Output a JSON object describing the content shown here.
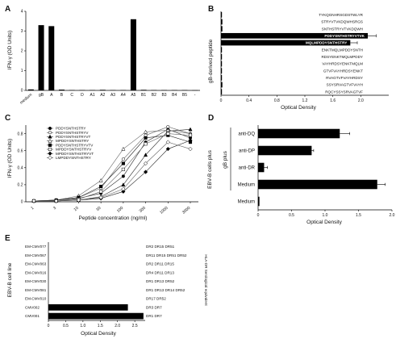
{
  "chart_data": [
    {
      "panel": "A",
      "type": "bar",
      "ylabel": "IFN-γ (OD Units)",
      "ylim": [
        0,
        4
      ],
      "yticks": [
        0,
        1,
        2,
        3,
        4
      ],
      "categories": [
        "medium",
        "gB",
        "A",
        "B",
        "C",
        "D",
        "A1",
        "A2",
        "A3",
        "A4",
        "A5",
        "B1",
        "B2",
        "B3",
        "B4",
        "B5",
        "-"
      ],
      "values": [
        0.05,
        3.3,
        3.25,
        0.04,
        0.02,
        0.02,
        0.02,
        0.03,
        0.02,
        0.02,
        3.6,
        0.03,
        0.02,
        0.02,
        0.02,
        0.02,
        0.01
      ]
    },
    {
      "panel": "B",
      "type": "bar",
      "orientation": "horizontal",
      "ylabel": "gB-derived peptide",
      "xlabel": "Optical Density",
      "xlim": [
        0,
        2.4
      ],
      "xticks": [
        "0",
        "0.4",
        "0.8",
        "1.2",
        "1.6",
        "2.0"
      ],
      "categories": [
        "TYKQGNHRSGDSTWLYR",
        "STRYVTVKDQWHSRGS",
        "SNTHSTRYVTVKDQWH",
        "PDDYSNTHSTRYVTVK",
        "MQLMPDDYSNTHSTRY",
        "ENKTMQLMPDDYSNTH",
        "RDSYENKTMQLMPDDY",
        "VAYHRDSYENKTMQLM",
        "GTVFVAYHRDSYENKT",
        "RVAGTVFVAYHRDSY",
        "SSYSRVAGTVFVAYH",
        "RQCYSSYSRVAGTVF"
      ],
      "values": [
        0.01,
        0.02,
        0.02,
        2.1,
        1.85,
        0.01,
        0.01,
        0.01,
        0.01,
        0.01,
        0.02,
        0.01
      ],
      "errors": [
        0,
        0,
        0,
        0.12,
        0.1,
        0,
        0,
        0,
        0,
        0,
        0,
        0
      ],
      "highlighted": [
        false,
        false,
        false,
        true,
        true,
        false,
        false,
        false,
        false,
        false,
        false,
        false
      ]
    },
    {
      "panel": "C",
      "type": "line",
      "ylabel": "IFN-γ (OD Units)",
      "xlabel": "Peptide concentration (ng/ml)",
      "x": [
        "1",
        "3",
        "10",
        "30",
        "100",
        "300",
        "1000",
        "3000"
      ],
      "ylim": [
        0,
        0.9
      ],
      "yticks": [
        "0",
        "0.2",
        "0.4",
        "0.6",
        "0.8"
      ],
      "series": [
        {
          "name": "PDDYSNTHSTRY",
          "marker": "filled-circle",
          "values": [
            0.01,
            0.02,
            0.04,
            0.1,
            0.3,
            0.7,
            0.85,
            0.75
          ]
        },
        {
          "name": "PDDYSNTHSTRYV",
          "marker": "open-circle",
          "values": [
            0.01,
            0.02,
            0.05,
            0.16,
            0.5,
            0.78,
            0.88,
            0.8
          ]
        },
        {
          "name": "PDDYSNTHSTRYVT",
          "marker": "filled-triangle",
          "values": [
            0.01,
            0.01,
            0.02,
            0.06,
            0.2,
            0.55,
            0.83,
            0.85
          ]
        },
        {
          "name": "MPDDYSNTHSTRY",
          "marker": "open-triangle",
          "values": [
            0.01,
            0.02,
            0.07,
            0.25,
            0.62,
            0.82,
            0.84,
            0.8
          ]
        },
        {
          "name": "PDDYSNTHSTRYVTV",
          "marker": "filled-square",
          "values": [
            0.01,
            0.02,
            0.05,
            0.18,
            0.45,
            0.75,
            0.78,
            0.7
          ]
        },
        {
          "name": "MPDDYSNTHSTRYV",
          "marker": "open-square",
          "values": [
            0.01,
            0.01,
            0.03,
            0.12,
            0.38,
            0.68,
            0.8,
            0.78
          ]
        },
        {
          "name": "MPDDYSNTHSTRYVT",
          "marker": "filled-diamond",
          "values": [
            0.01,
            0.01,
            0.02,
            0.04,
            0.12,
            0.35,
            0.62,
            0.72
          ]
        },
        {
          "name": "LMPDDYSNTHSTRY",
          "marker": "open-diamond",
          "values": [
            0.01,
            0.01,
            0.02,
            0.05,
            0.15,
            0.45,
            0.7,
            0.62
          ]
        }
      ]
    },
    {
      "panel": "D",
      "type": "bar",
      "orientation": "horizontal",
      "ylabel": "EBV-B cells plus",
      "sub_label": "gB plus",
      "xlabel": "Optical Density",
      "xlim": [
        0,
        2
      ],
      "xticks": [
        "0",
        "0.5",
        "1.0",
        "1.5",
        "2.0"
      ],
      "categories": [
        "anti-DQ",
        "anti-DP",
        "anti-DR",
        "Medium",
        "Medium"
      ],
      "values": [
        1.22,
        0.8,
        0.09,
        1.78,
        0.02
      ],
      "errors": [
        0.15,
        0.03,
        0.05,
        0.12,
        0
      ],
      "gb_group_size": 4
    },
    {
      "panel": "E",
      "type": "bar",
      "orientation": "horizontal",
      "ylabel": "EBV-B cell line",
      "right_label": "HLA-DR Serological equivalent",
      "xlabel": "Optical Density",
      "xlim": [
        0,
        2.8
      ],
      "xticks": [
        "0",
        "0.5",
        "1.0",
        "1.5",
        "2.0",
        "2.5"
      ],
      "categories": [
        "EM-CMV077",
        "EM-CMV067",
        "EM-CMV063",
        "EM-CMV016",
        "EM-CMV030",
        "EM-CMV081",
        "EM-CMV010",
        "CMV002",
        "CMV001"
      ],
      "hla": [
        "DR2 DR15 DR51",
        "DR11 DR15 DR51 DR52",
        "DR2 DR11 DR15",
        "DR4 DR11 DR13",
        "DR1 DR13 DR52",
        "DR1 DR13 DR14 DR52",
        "DR17 DR52",
        "DR3 DR7",
        "DR1 DR7"
      ],
      "values": [
        0.0,
        0.0,
        0.0,
        0.0,
        0.0,
        0.0,
        0.0,
        2.3,
        2.75
      ]
    }
  ]
}
